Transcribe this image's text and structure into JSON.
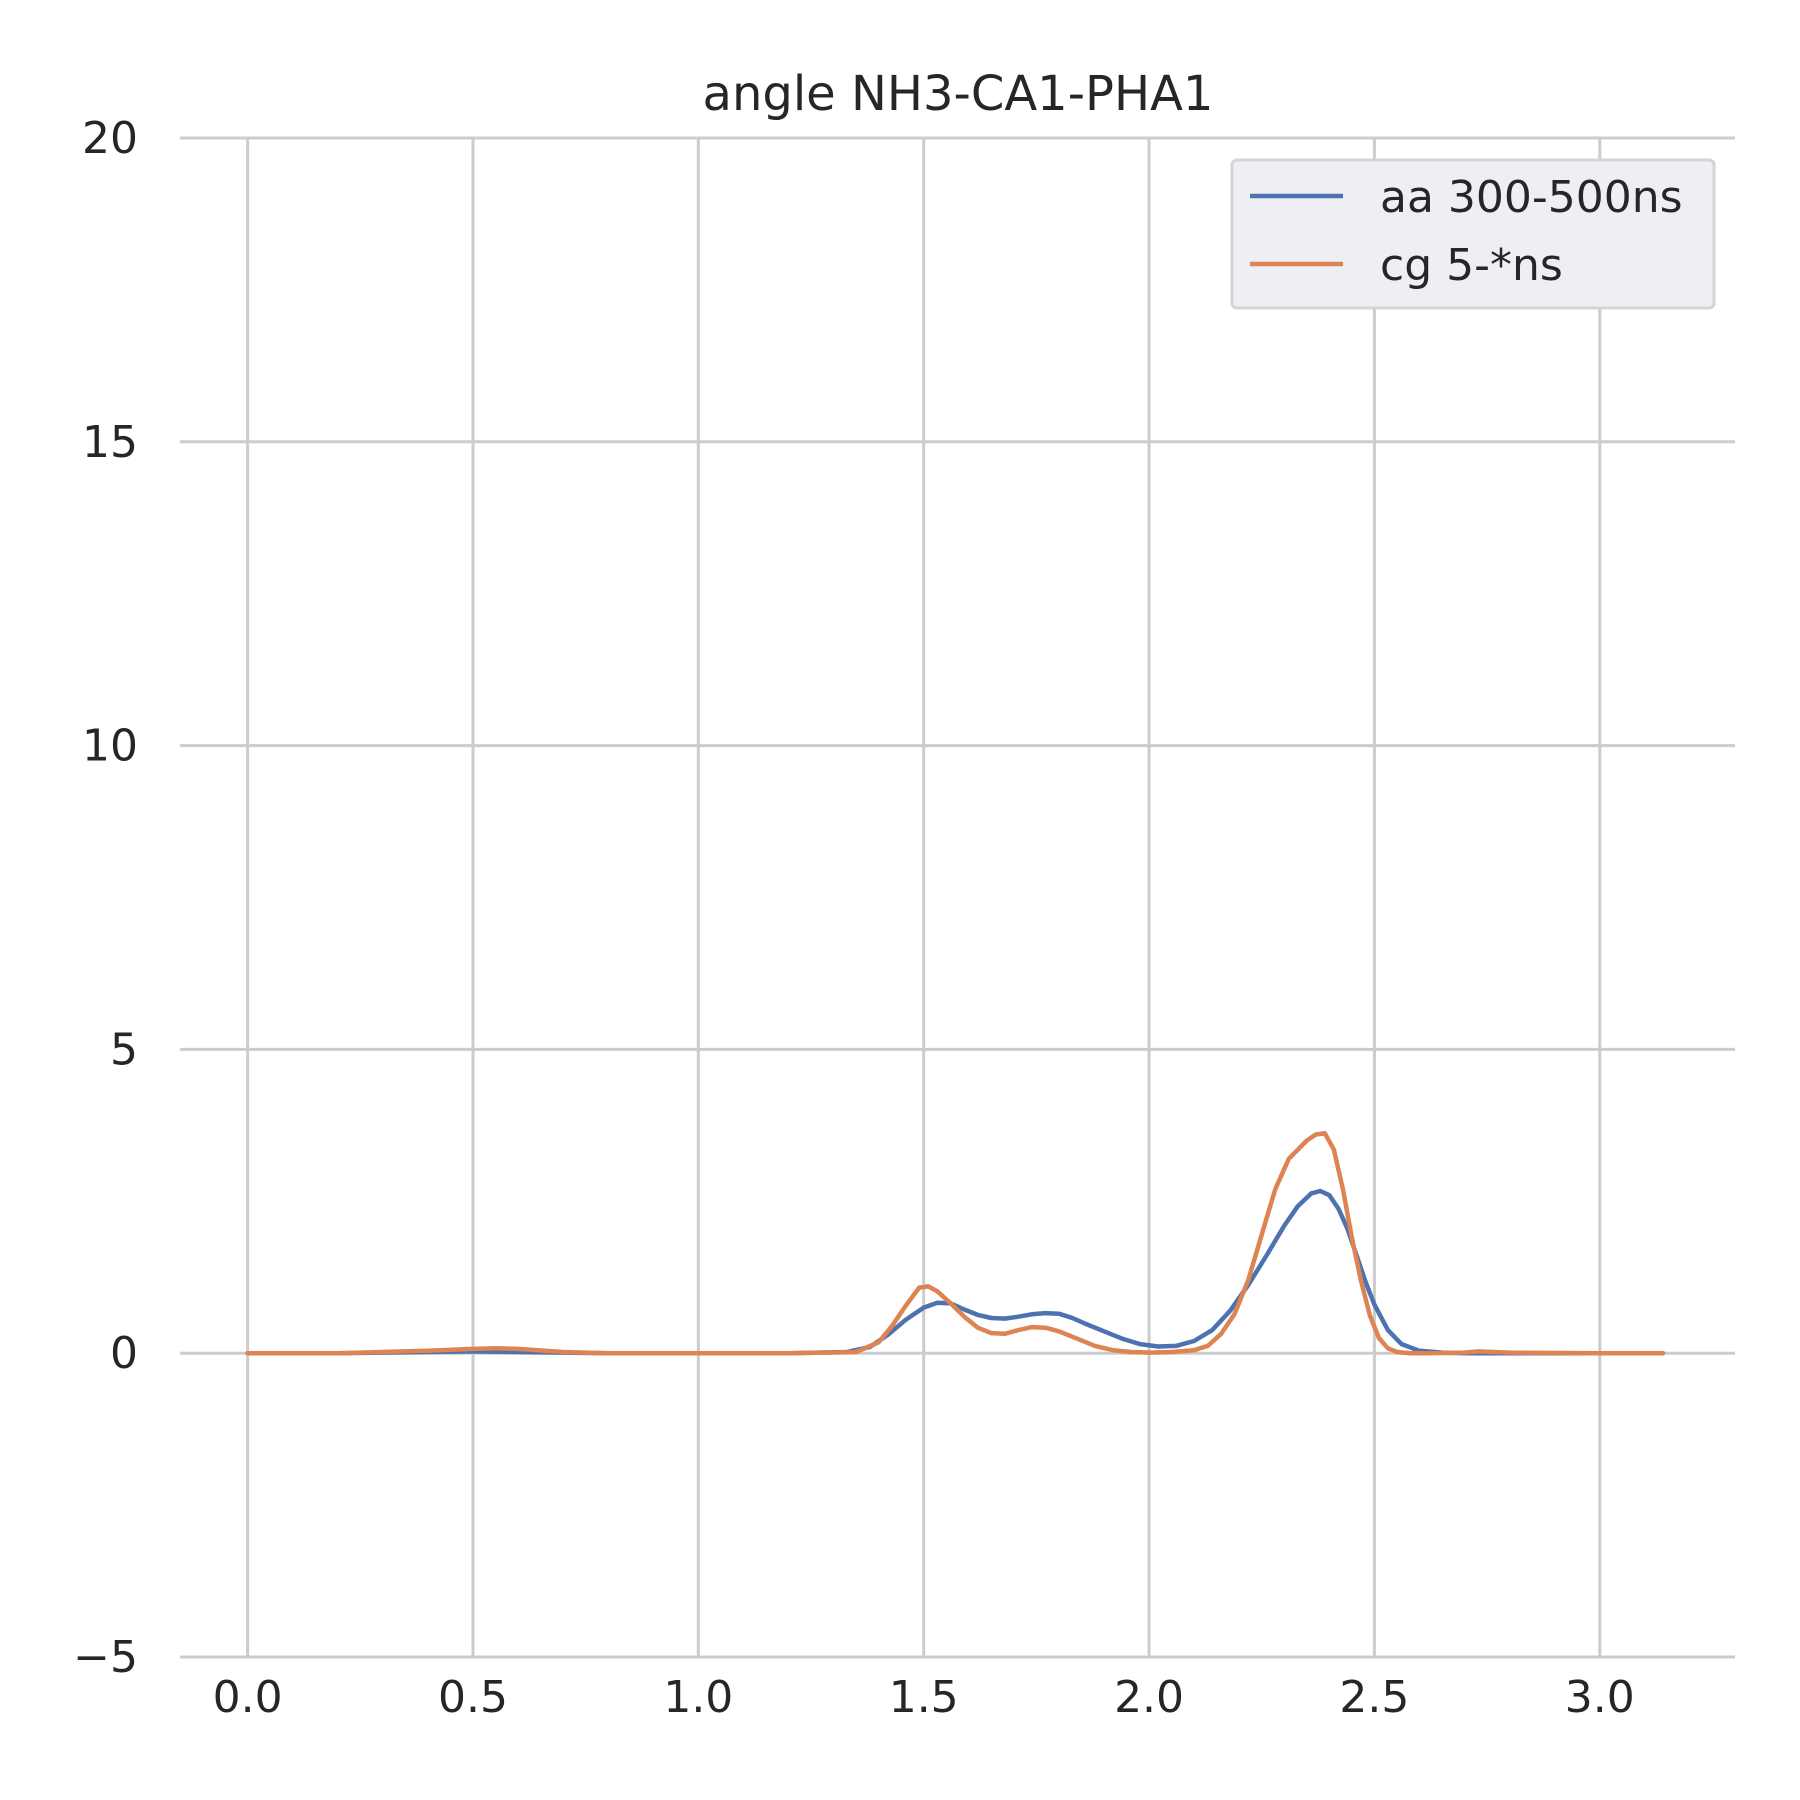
{
  "chart_data": {
    "type": "line",
    "title": "angle NH3-CA1-PHA1",
    "xlabel": "",
    "ylabel": "",
    "xlim": [
      -0.15,
      3.3
    ],
    "ylim": [
      -5,
      20
    ],
    "xticks": [
      0.0,
      0.5,
      1.0,
      1.5,
      2.0,
      2.5,
      3.0
    ],
    "xtick_labels": [
      "0.0",
      "0.5",
      "1.0",
      "1.5",
      "2.0",
      "2.5",
      "3.0"
    ],
    "yticks": [
      -5,
      0,
      5,
      10,
      15,
      20
    ],
    "ytick_labels": [
      "−5",
      "0",
      "5",
      "10",
      "15",
      "20"
    ],
    "grid": true,
    "legend_position": "top-right",
    "series": [
      {
        "name": "aa 300-500ns",
        "color": "#4c72b0",
        "x": [
          0.0,
          0.2,
          0.4,
          0.5,
          0.6,
          0.8,
          1.0,
          1.2,
          1.33,
          1.38,
          1.42,
          1.46,
          1.5,
          1.53,
          1.56,
          1.59,
          1.62,
          1.65,
          1.68,
          1.71,
          1.74,
          1.77,
          1.8,
          1.83,
          1.86,
          1.9,
          1.94,
          1.98,
          2.02,
          2.06,
          2.1,
          2.14,
          2.18,
          2.22,
          2.26,
          2.3,
          2.33,
          2.36,
          2.38,
          2.4,
          2.42,
          2.44,
          2.46,
          2.48,
          2.5,
          2.53,
          2.56,
          2.6,
          2.65,
          2.7,
          2.8,
          3.0,
          3.14
        ],
        "y": [
          0,
          0,
          0.02,
          0.03,
          0.02,
          0,
          0,
          0,
          0.02,
          0.1,
          0.3,
          0.55,
          0.75,
          0.83,
          0.82,
          0.72,
          0.63,
          0.58,
          0.57,
          0.6,
          0.64,
          0.66,
          0.65,
          0.58,
          0.48,
          0.36,
          0.24,
          0.15,
          0.11,
          0.12,
          0.2,
          0.38,
          0.7,
          1.12,
          1.6,
          2.1,
          2.42,
          2.63,
          2.67,
          2.6,
          2.38,
          2.05,
          1.62,
          1.18,
          0.8,
          0.38,
          0.15,
          0.04,
          0.01,
          0,
          0,
          0,
          0
        ]
      },
      {
        "name": "cg 5-*ns",
        "color": "#dd8452",
        "x": [
          0.0,
          0.2,
          0.4,
          0.5,
          0.55,
          0.6,
          0.7,
          0.8,
          1.0,
          1.2,
          1.35,
          1.4,
          1.43,
          1.46,
          1.49,
          1.51,
          1.53,
          1.56,
          1.59,
          1.62,
          1.65,
          1.68,
          1.71,
          1.74,
          1.77,
          1.8,
          1.84,
          1.88,
          1.92,
          1.96,
          2.0,
          2.05,
          2.1,
          2.13,
          2.16,
          2.19,
          2.22,
          2.25,
          2.28,
          2.31,
          2.33,
          2.35,
          2.37,
          2.39,
          2.41,
          2.43,
          2.45,
          2.47,
          2.49,
          2.51,
          2.53,
          2.55,
          2.58,
          2.62,
          2.7,
          2.73,
          2.8,
          3.0,
          3.14
        ],
        "y": [
          0,
          0,
          0.04,
          0.07,
          0.08,
          0.07,
          0.02,
          0,
          0,
          0,
          0.02,
          0.18,
          0.45,
          0.78,
          1.08,
          1.1,
          1.02,
          0.82,
          0.6,
          0.42,
          0.33,
          0.32,
          0.38,
          0.43,
          0.42,
          0.36,
          0.24,
          0.12,
          0.05,
          0.02,
          0.01,
          0.02,
          0.05,
          0.12,
          0.32,
          0.65,
          1.2,
          1.95,
          2.7,
          3.2,
          3.35,
          3.5,
          3.6,
          3.62,
          3.35,
          2.7,
          1.9,
          1.2,
          0.62,
          0.25,
          0.08,
          0.02,
          0,
          0,
          0.01,
          0.03,
          0.01,
          0,
          0
        ]
      }
    ]
  }
}
